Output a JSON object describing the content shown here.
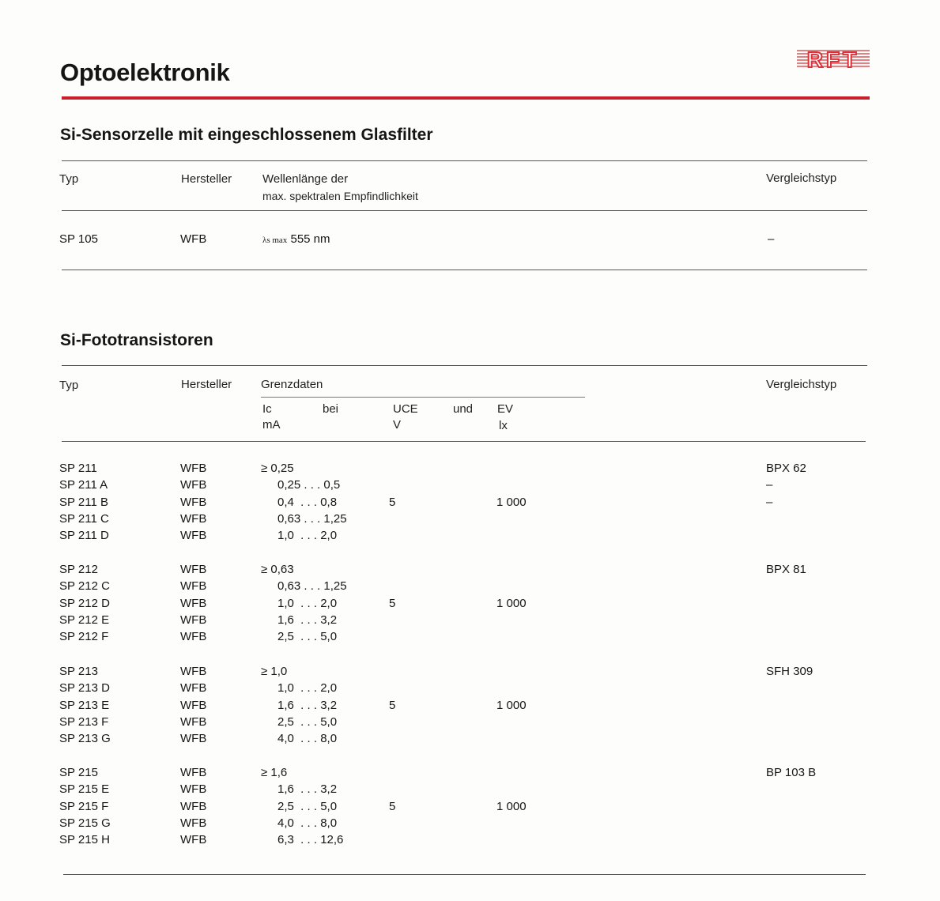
{
  "header": {
    "title": "Optoelektronik",
    "logo": "RFT",
    "brand_color": "#c8202a"
  },
  "section1": {
    "title": "Si-Sensorzelle mit eingeschlossenem Glasfilter",
    "columns": {
      "typ": "Typ",
      "hersteller": "Hersteller",
      "wellen_1": "Wellenlänge der",
      "wellen_2": "max. spektralen Empfindlichkeit",
      "vergleich": "Vergleichstyp"
    },
    "row": {
      "typ": "SP 105",
      "hersteller": "WFB",
      "lambda_symbol": "λs max",
      "wellen": "555 nm",
      "vergleich": "–"
    }
  },
  "section2": {
    "title": "Si-Fototransistoren",
    "columns": {
      "typ": "Typ",
      "hersteller": "Hersteller",
      "grenzdaten": "Grenzdaten",
      "ic": "Ic",
      "ic_unit": "mA",
      "bei": "bei",
      "uce": "UCE",
      "uce_unit": "V",
      "und": "und",
      "ev": "EV",
      "ev_unit": "lx",
      "vergleich": "Vergleichstyp"
    },
    "groups": [
      {
        "uce": "5",
        "ev": "1 000",
        "rows": [
          {
            "typ": "SP 211",
            "hersteller": "WFB",
            "ic": "≥ 0,25",
            "vergleich": "BPX 62"
          },
          {
            "typ": "SP 211 A",
            "hersteller": "WFB",
            "ic": "0,25 . . . 0,5",
            "vergleich": "–"
          },
          {
            "typ": "SP 211 B",
            "hersteller": "WFB",
            "ic": "0,4  . . . 0,8",
            "vergleich": "–"
          },
          {
            "typ": "SP 211 C",
            "hersteller": "WFB",
            "ic": "0,63 . . . 1,25",
            "vergleich": ""
          },
          {
            "typ": "SP 211 D",
            "hersteller": "WFB",
            "ic": "1,0  . . . 2,0",
            "vergleich": ""
          }
        ]
      },
      {
        "uce": "5",
        "ev": "1 000",
        "rows": [
          {
            "typ": "SP 212",
            "hersteller": "WFB",
            "ic": "≥ 0,63",
            "vergleich": "BPX 81"
          },
          {
            "typ": "SP 212 C",
            "hersteller": "WFB",
            "ic": "0,63 . . . 1,25",
            "vergleich": ""
          },
          {
            "typ": "SP 212 D",
            "hersteller": "WFB",
            "ic": "1,0  . . . 2,0",
            "vergleich": ""
          },
          {
            "typ": "SP 212 E",
            "hersteller": "WFB",
            "ic": "1,6  . . . 3,2",
            "vergleich": ""
          },
          {
            "typ": "SP 212 F",
            "hersteller": "WFB",
            "ic": "2,5  . . . 5,0",
            "vergleich": ""
          }
        ]
      },
      {
        "uce": "5",
        "ev": "1 000",
        "rows": [
          {
            "typ": "SP 213",
            "hersteller": "WFB",
            "ic": "≥ 1,0",
            "vergleich": "SFH 309"
          },
          {
            "typ": "SP 213 D",
            "hersteller": "WFB",
            "ic": "1,0  . . . 2,0",
            "vergleich": ""
          },
          {
            "typ": "SP 213 E",
            "hersteller": "WFB",
            "ic": "1,6  . . . 3,2",
            "vergleich": ""
          },
          {
            "typ": "SP 213 F",
            "hersteller": "WFB",
            "ic": "2,5  . . . 5,0",
            "vergleich": ""
          },
          {
            "typ": "SP 213 G",
            "hersteller": "WFB",
            "ic": "4,0  . . . 8,0",
            "vergleich": ""
          }
        ]
      },
      {
        "uce": "5",
        "ev": "1 000",
        "rows": [
          {
            "typ": "SP 215",
            "hersteller": "WFB",
            "ic": "≥ 1,6",
            "vergleich": "BP 103 B"
          },
          {
            "typ": "SP 215 E",
            "hersteller": "WFB",
            "ic": "1,6  . . . 3,2",
            "vergleich": ""
          },
          {
            "typ": "SP 215 F",
            "hersteller": "WFB",
            "ic": "2,5  . . . 5,0",
            "vergleich": ""
          },
          {
            "typ": "SP 215 G",
            "hersteller": "WFB",
            "ic": "4,0  . . . 8,0",
            "vergleich": ""
          },
          {
            "typ": "SP 215 H",
            "hersteller": "WFB",
            "ic": "6,3  . . . 12,6",
            "vergleich": ""
          }
        ]
      }
    ]
  }
}
